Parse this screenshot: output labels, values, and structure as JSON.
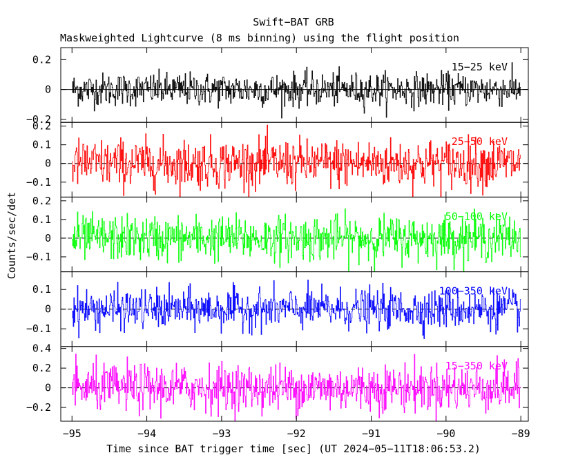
{
  "title": "Swift−BAT GRB",
  "subtitle": "Maskweighted Lightcurve (8 ms binning) using the flight position",
  "xlabel": "Time since BAT trigger time [sec] (UT 2024−05−11T18:06:53.2)",
  "ylabel": "Counts/sec/det",
  "chart_data": {
    "type": "line",
    "description_binning_ms": 8,
    "xlim": [
      -95.15,
      -88.9
    ],
    "x_ticks": [
      -95,
      -94,
      -93,
      -92,
      -91,
      -90,
      -89
    ],
    "x_tick_labels": [
      "−95",
      "−94",
      "−93",
      "−92",
      "−91",
      "−90",
      "−89"
    ],
    "x_start": -95.0,
    "x_end": -89.0,
    "panels": [
      {
        "name": "15−25 keV",
        "color": "#000000",
        "ylim": [
          -0.22,
          0.28
        ],
        "y_ticks": [
          0.2,
          0,
          -0.2
        ],
        "y_tick_labels": [
          "0.2",
          "0",
          "−0.2"
        ],
        "noise_sigma": 0.055,
        "zero_dashed": false
      },
      {
        "name": "25−50 keV",
        "color": "#ff0000",
        "ylim": [
          -0.18,
          0.22
        ],
        "y_ticks": [
          0.2,
          0.1,
          0,
          -0.1
        ],
        "y_tick_labels": [
          "0.2",
          "0.1",
          "0",
          "−0.1"
        ],
        "noise_sigma": 0.065,
        "zero_dashed": true
      },
      {
        "name": "50−100 keV",
        "color": "#00ff00",
        "ylim": [
          -0.18,
          0.22
        ],
        "y_ticks": [
          0.2,
          0.1,
          0,
          -0.1
        ],
        "y_tick_labels": [
          "0.2",
          "0.1",
          "0",
          "−0.1"
        ],
        "noise_sigma": 0.06,
        "zero_dashed": true
      },
      {
        "name": "100−350 keV",
        "color": "#0000ff",
        "ylim": [
          -0.19,
          0.19
        ],
        "y_ticks": [
          0.1,
          0,
          -0.1
        ],
        "y_tick_labels": [
          "0.1",
          "0",
          "−0.1"
        ],
        "noise_sigma": 0.05,
        "zero_dashed": true
      },
      {
        "name": "15−350 keV",
        "color": "#ff00ff",
        "ylim": [
          -0.34,
          0.42
        ],
        "y_ticks": [
          0.4,
          0.2,
          0,
          -0.2
        ],
        "y_tick_labels": [
          "0.4",
          "0.2",
          "0",
          "−0.2"
        ],
        "noise_sigma": 0.12,
        "zero_dashed": true
      }
    ]
  }
}
